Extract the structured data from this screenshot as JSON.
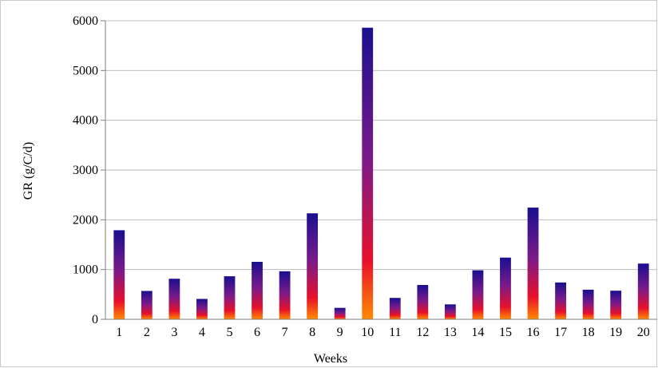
{
  "chart_data": {
    "type": "bar",
    "title": "",
    "xlabel": "Weeks",
    "ylabel": "GR (g/C/d)",
    "categories": [
      "1",
      "2",
      "3",
      "4",
      "5",
      "6",
      "7",
      "8",
      "9",
      "10",
      "11",
      "12",
      "13",
      "14",
      "15",
      "16",
      "17",
      "18",
      "19",
      "20"
    ],
    "values": [
      1790,
      570,
      815,
      410,
      865,
      1155,
      965,
      2130,
      230,
      5860,
      430,
      690,
      300,
      985,
      1240,
      2245,
      740,
      595,
      575,
      1120
    ],
    "ylim": [
      0,
      6000
    ],
    "yticks": [
      0,
      1000,
      2000,
      3000,
      4000,
      5000,
      6000
    ],
    "grid": "horizontal",
    "legend": "none",
    "colors": {
      "bar_top": "#1a0f8f",
      "bar_mid": "#7a1a8a",
      "bar_low": "#e8102a",
      "bar_base": "#ff8a00",
      "grid": "#bdbdbd",
      "axis": "#808080"
    }
  }
}
